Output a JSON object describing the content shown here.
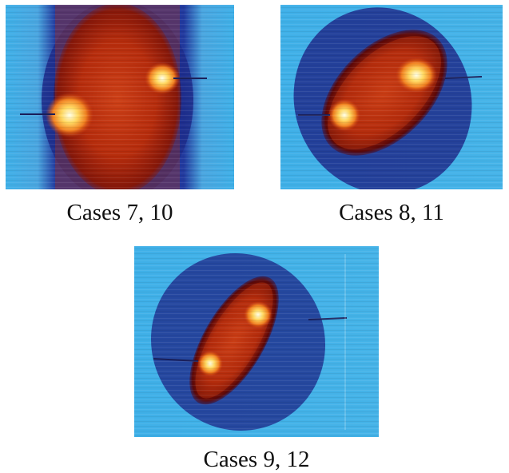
{
  "figure": {
    "panels": [
      {
        "caption": "Cases 7, 10"
      },
      {
        "caption": "Cases 8, 11"
      },
      {
        "caption": "Cases 9, 12"
      }
    ]
  },
  "colors": {
    "background_cyan": "#3fb0e8",
    "deep_blue": "#1a2a8a",
    "dark_red": "#7a0a00",
    "orange": "#e0501a",
    "hot_yellow": "#fff4b0"
  }
}
